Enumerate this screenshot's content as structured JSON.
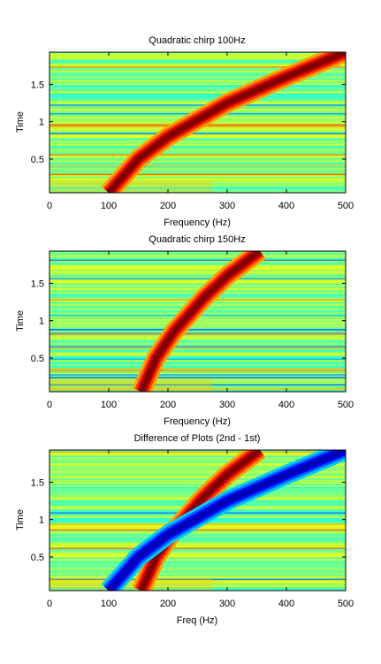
{
  "chart_data": [
    {
      "type": "heatmap",
      "title": "Quadratic chirp 100Hz",
      "xlabel": "Frequency (Hz)",
      "ylabel": "Time",
      "xlim": [
        0,
        500
      ],
      "ylim": [
        0.05,
        1.93
      ],
      "xticks": [
        0,
        100,
        200,
        300,
        400,
        500
      ],
      "yticks": [
        0.5,
        1,
        1.5
      ],
      "grid": false,
      "colormap": "jet",
      "ridges": [
        {
          "sign": 1,
          "points": [
            [
              100,
              0.05
            ],
            [
              150,
              0.5
            ],
            [
              200,
              0.8
            ],
            [
              300,
              1.25
            ],
            [
              400,
              1.6
            ],
            [
              500,
              1.93
            ]
          ]
        }
      ]
    },
    {
      "type": "heatmap",
      "title": "Quadratic chirp 150Hz",
      "xlabel": "Frequency (Hz)",
      "ylabel": "Time",
      "xlim": [
        0,
        500
      ],
      "ylim": [
        0.05,
        1.93
      ],
      "xticks": [
        0,
        100,
        200,
        300,
        400,
        500
      ],
      "yticks": [
        0.5,
        1,
        1.5
      ],
      "grid": false,
      "colormap": "jet",
      "ridges": [
        {
          "sign": 1,
          "points": [
            [
              155,
              0.05
            ],
            [
              180,
              0.5
            ],
            [
              210,
              0.85
            ],
            [
              260,
              1.3
            ],
            [
              300,
              1.6
            ],
            [
              355,
              1.93
            ]
          ]
        }
      ]
    },
    {
      "type": "heatmap",
      "title": "Difference of Plots (2nd - 1st)",
      "xlabel": "Freq (Hz)",
      "ylabel": "Time",
      "xlim": [
        0,
        500
      ],
      "ylim": [
        0.05,
        1.93
      ],
      "xticks": [
        0,
        100,
        200,
        300,
        400,
        500
      ],
      "yticks": [
        0.5,
        1,
        1.5
      ],
      "grid": false,
      "colormap": "jet",
      "ridges": [
        {
          "sign": 1,
          "points": [
            [
              155,
              0.05
            ],
            [
              180,
              0.5
            ],
            [
              210,
              0.85
            ],
            [
              260,
              1.3
            ],
            [
              300,
              1.6
            ],
            [
              355,
              1.93
            ]
          ]
        },
        {
          "sign": -1,
          "points": [
            [
              100,
              0.05
            ],
            [
              150,
              0.5
            ],
            [
              200,
              0.8
            ],
            [
              300,
              1.25
            ],
            [
              400,
              1.6
            ],
            [
              500,
              1.93
            ]
          ]
        }
      ]
    }
  ]
}
